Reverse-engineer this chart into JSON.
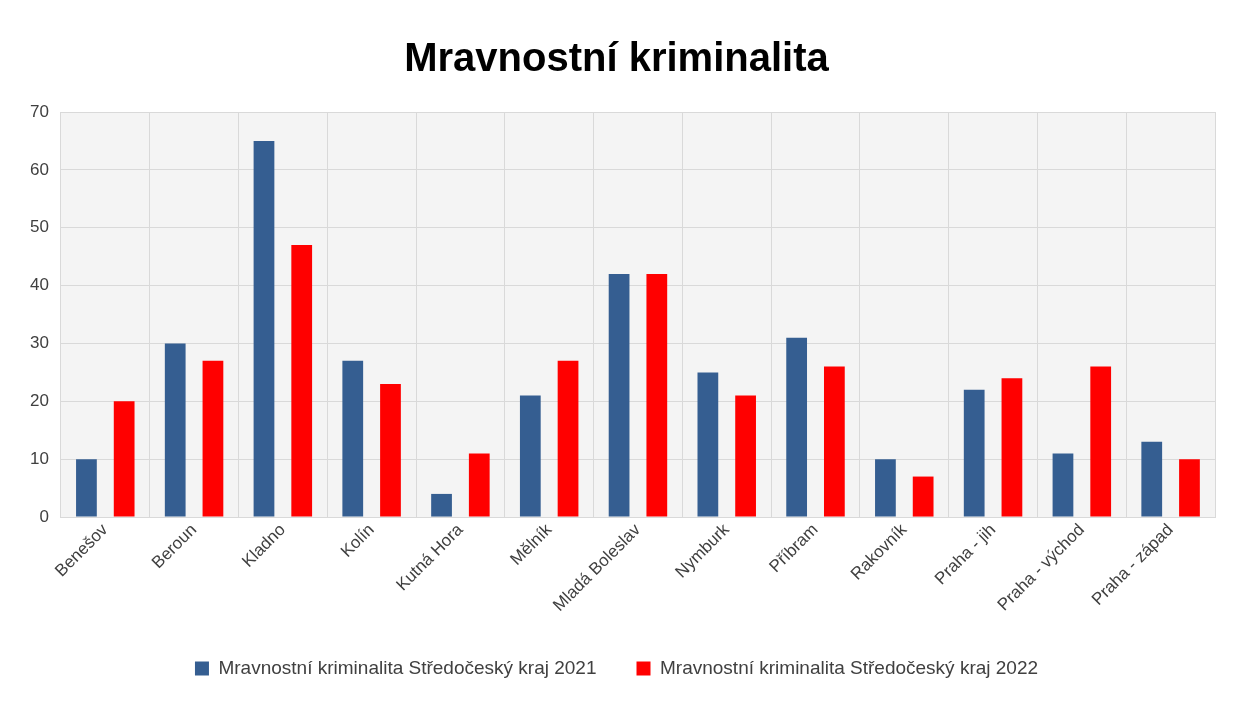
{
  "chart_data": {
    "type": "bar",
    "title": "Mravnostní kriminalita",
    "categories": [
      "Benešov",
      "Beroun",
      "Kladno",
      "Kolín",
      "Kutná Hora",
      "Mělník",
      "Mladá Boleslav",
      "Nymburk",
      "Příbram",
      "Rakovník",
      "Praha - jih",
      "Praha - východ",
      "Praha - západ"
    ],
    "series": [
      {
        "name": "Mravnostní kriminalita Středočeský kraj 2021",
        "color": "#355e91",
        "values": [
          10,
          30,
          65,
          27,
          4,
          21,
          42,
          25,
          31,
          10,
          22,
          11,
          13
        ]
      },
      {
        "name": "Mravnostní kriminalita Středočeský kraj 2022",
        "color": "#ff0000",
        "values": [
          20,
          27,
          47,
          23,
          11,
          27,
          42,
          21,
          26,
          7,
          24,
          26,
          10
        ]
      }
    ],
    "ylim": [
      0,
      70
    ],
    "yticks": [
      0,
      10,
      20,
      30,
      40,
      50,
      60,
      70
    ],
    "grid": true,
    "legend": "bottom"
  }
}
